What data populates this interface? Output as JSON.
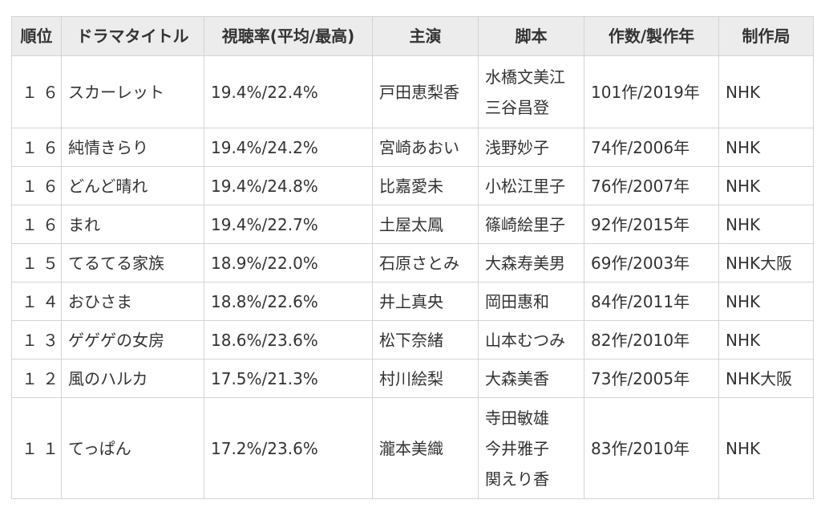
{
  "table": {
    "headers": [
      "順位",
      "ドラマタイトル",
      "視聴率(平均/最高)",
      "主演",
      "脚本",
      "作数/製作年",
      "制作局"
    ],
    "rows": [
      {
        "rank": "１６",
        "title": "スカーレット",
        "rating": "19.4%/22.4%",
        "lead": "戸田恵梨香",
        "writers": [
          "水橋文美江",
          "三谷昌登"
        ],
        "episodes_year": "101作/2019年",
        "station": "NHK"
      },
      {
        "rank": "１６",
        "title": "純情きらり",
        "rating": "19.4%/24.2%",
        "lead": "宮崎あおい",
        "writers": [
          "浅野妙子"
        ],
        "episodes_year": "74作/2006年",
        "station": "NHK"
      },
      {
        "rank": "１６",
        "title": "どんど晴れ",
        "rating": "19.4%/24.8%",
        "lead": "比嘉愛未",
        "writers": [
          "小松江里子"
        ],
        "episodes_year": "76作/2007年",
        "station": "NHK"
      },
      {
        "rank": "１６",
        "title": "まれ",
        "rating": "19.4%/22.7%",
        "lead": "土屋太鳳",
        "writers": [
          "篠崎絵里子"
        ],
        "episodes_year": "92作/2015年",
        "station": "NHK"
      },
      {
        "rank": "１５",
        "title": "てるてる家族",
        "rating": "18.9%/22.0%",
        "lead": "石原さとみ",
        "writers": [
          "大森寿美男"
        ],
        "episodes_year": "69作/2003年",
        "station": "NHK大阪"
      },
      {
        "rank": "１４",
        "title": "おひさま",
        "rating": "18.8%/22.6%",
        "lead": "井上真央",
        "writers": [
          "岡田惠和"
        ],
        "episodes_year": "84作/2011年",
        "station": "NHK"
      },
      {
        "rank": "１３",
        "title": "ゲゲゲの女房",
        "rating": "18.6%/23.6%",
        "lead": "松下奈緒",
        "writers": [
          "山本むつみ"
        ],
        "episodes_year": "82作/2010年",
        "station": "NHK"
      },
      {
        "rank": "１２",
        "title": "風のハルカ",
        "rating": "17.5%/21.3%",
        "lead": "村川絵梨",
        "writers": [
          "大森美香"
        ],
        "episodes_year": "73作/2005年",
        "station": "NHK大阪"
      },
      {
        "rank": "１１",
        "title": "てっぱん",
        "rating": "17.2%/23.6%",
        "lead": "瀧本美織",
        "writers": [
          "寺田敏雄",
          "今井雅子",
          "関えり香"
        ],
        "episodes_year": "83作/2010年",
        "station": "NHK"
      }
    ]
  }
}
